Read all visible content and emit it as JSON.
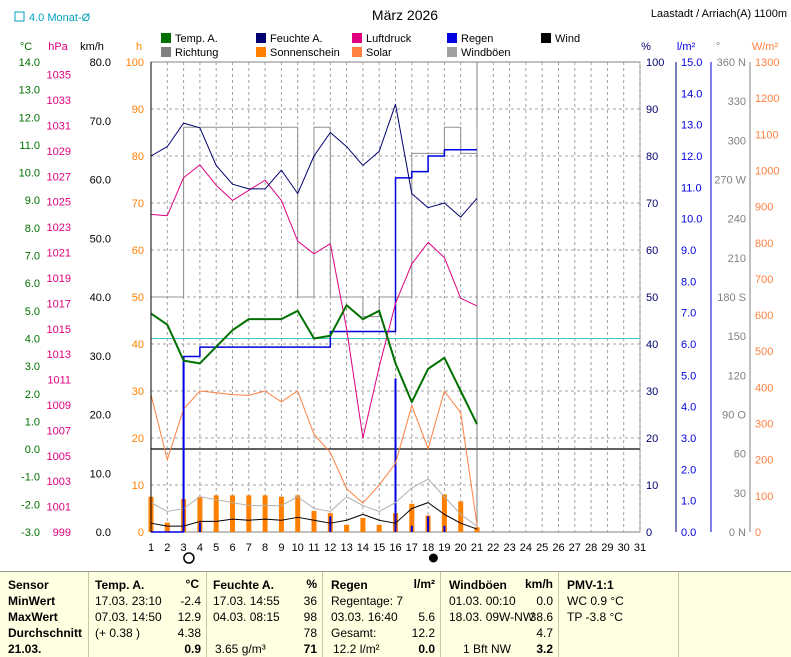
{
  "title": "März 2026",
  "station": "Laastadt / Arriach(A) 1100m",
  "avg_label": "4.0 Monat-Ø",
  "legend": [
    {
      "name": "Temp. A.",
      "color": "#007000"
    },
    {
      "name": "Feuchte A.",
      "color": "#000070"
    },
    {
      "name": "Luftdruck",
      "color": "#e0007f"
    },
    {
      "name": "Regen",
      "color": "#0000e0"
    },
    {
      "name": "Wind",
      "color": "#000000"
    },
    {
      "name": "Richtung",
      "color": "#808080"
    },
    {
      "name": "Sonnenschein",
      "color": "#ff8000"
    },
    {
      "name": "Solar",
      "color": "#ff8040"
    },
    {
      "name": "Windböen",
      "color": "#a0a0a0"
    }
  ],
  "units": {
    "temp": "°C",
    "press": "hPa",
    "wind": "km/h",
    "sun": "h",
    "hum": "%",
    "rain": "l/m²",
    "dir": "°",
    "solar": "W/m²"
  },
  "axes": {
    "temp_ticks": [
      "14.0",
      "13.0",
      "12.0",
      "11.0",
      "10.0",
      "9.0",
      "8.0",
      "7.0",
      "6.0",
      "5.0",
      "4.0",
      "3.0",
      "2.0",
      "1.0",
      "0.0",
      "-1.0",
      "-2.0",
      "-3.0"
    ],
    "press_ticks": [
      "1035",
      "1033",
      "1031",
      "1029",
      "1027",
      "1025",
      "1023",
      "1021",
      "1019",
      "1017",
      "1015",
      "1013",
      "1011",
      "1009",
      "1007",
      "1005",
      "1003",
      "1001",
      "999"
    ],
    "wind_ticks": [
      "80.0",
      "70.0",
      "60.0",
      "50.0",
      "40.0",
      "30.0",
      "20.0",
      "10.0",
      "0.0"
    ],
    "sun_ticks": [
      "100",
      "90",
      "80",
      "70",
      "60",
      "50",
      "40",
      "30",
      "20",
      "10",
      "0"
    ],
    "hum_ticks": [
      "100",
      "90",
      "80",
      "70",
      "60",
      "50",
      "40",
      "30",
      "20",
      "10",
      "0"
    ],
    "rain_ticks": [
      "15.0",
      "14.0",
      "13.0",
      "12.0",
      "11.0",
      "10.0",
      "9.0",
      "8.0",
      "7.0",
      "6.0",
      "5.0",
      "4.0",
      "3.0",
      "2.0",
      "1.0",
      "0.0"
    ],
    "dir_ticks": [
      "360 N",
      "330",
      "300",
      "270 W",
      "240",
      "210",
      "180 S",
      "150",
      "120",
      "90 O",
      "60",
      "30",
      "0 N"
    ],
    "solar_ticks": [
      "1300",
      "1200",
      "1100",
      "1000",
      "900",
      "800",
      "700",
      "600",
      "500",
      "400",
      "300",
      "200",
      "100",
      "0"
    ],
    "x_ticks": [
      "1",
      "2",
      "3",
      "4",
      "5",
      "6",
      "7",
      "8",
      "9",
      "10",
      "11",
      "12",
      "13",
      "14",
      "15",
      "16",
      "17",
      "18",
      "19",
      "20",
      "21",
      "22",
      "23",
      "24",
      "25",
      "26",
      "27",
      "28",
      "29",
      "30",
      "31"
    ]
  },
  "chart_data": {
    "type": "line",
    "title": "März 2026",
    "x": [
      1,
      2,
      3,
      4,
      5,
      6,
      7,
      8,
      9,
      10,
      11,
      12,
      13,
      14,
      15,
      16,
      17,
      18,
      19,
      20,
      21
    ],
    "xlim": [
      1,
      31
    ],
    "series": [
      {
        "name": "Temp. A.",
        "unit": "°C",
        "ylim": [
          -3,
          14
        ],
        "values": [
          4.9,
          4.5,
          3.2,
          3.1,
          3.7,
          4.3,
          4.7,
          4.7,
          4.7,
          5.0,
          4.0,
          4.1,
          5.2,
          4.7,
          5.0,
          3.1,
          1.7,
          2.9,
          3.3,
          2.1,
          0.9
        ]
      },
      {
        "name": "Feuchte A.",
        "unit": "%",
        "ylim": [
          0,
          100
        ],
        "values": [
          80,
          82,
          87,
          86,
          78,
          74,
          73,
          73,
          77,
          72,
          80,
          85,
          82,
          78,
          81,
          91,
          72,
          69,
          70,
          67,
          71
        ]
      },
      {
        "name": "Luftdruck",
        "unit": "hPa",
        "ylim": [
          999,
          1036
        ],
        "values": [
          1024.0,
          1023.9,
          1026.9,
          1027.9,
          1026.3,
          1025.1,
          1025.9,
          1026.7,
          1025.1,
          1021.9,
          1020.9,
          1021.7,
          1015.0,
          1006.4,
          1012.0,
          1017.0,
          1020.1,
          1021.8,
          1020.6,
          1017.4,
          1016.8
        ]
      },
      {
        "name": "Regen",
        "unit": "l/m²",
        "ylim": [
          0,
          15
        ],
        "cumulative": [
          0.0,
          0.0,
          5.6,
          5.9,
          5.9,
          5.9,
          5.9,
          5.9,
          5.9,
          5.9,
          5.9,
          6.4,
          6.4,
          6.4,
          6.4,
          11.3,
          11.5,
          12.0,
          12.2,
          12.2,
          12.2
        ],
        "daily": [
          0.0,
          0.0,
          5.6,
          0.3,
          0.0,
          0.0,
          0.0,
          0.0,
          0.0,
          0.0,
          0.0,
          0.5,
          0.0,
          0.0,
          0.0,
          4.9,
          0.2,
          0.5,
          0.2,
          0.0,
          0.0
        ]
      },
      {
        "name": "Wind",
        "unit": "km/h",
        "ylim": [
          0,
          80
        ],
        "values": [
          1.5,
          1.0,
          1.0,
          1.8,
          1.8,
          2.2,
          2.0,
          2.2,
          2.0,
          2.5,
          2.0,
          1.5,
          2.0,
          3.0,
          2.0,
          1.5,
          4.0,
          5.0,
          3.0,
          1.5,
          0.5
        ]
      },
      {
        "name": "Richtung",
        "unit": "°",
        "ylim": [
          0,
          360
        ],
        "values": [
          180,
          180,
          310,
          310,
          310,
          310,
          310,
          310,
          310,
          180,
          310,
          180,
          180,
          165,
          180,
          180,
          290,
          290,
          310,
          290,
          310
        ]
      },
      {
        "name": "Sonnenschein",
        "unit": "h",
        "ylim": [
          0,
          100
        ],
        "values": [
          7.5,
          2.0,
          7.0,
          7.5,
          7.8,
          7.8,
          7.8,
          7.8,
          7.5,
          7.8,
          4.5,
          4.0,
          1.5,
          3.0,
          1.5,
          4.0,
          6.0,
          3.5,
          8.0,
          6.5,
          1.0
        ]
      },
      {
        "name": "Solar",
        "unit": "W/m²",
        "ylim": [
          0,
          1300
        ],
        "values": [
          380,
          200,
          340,
          390,
          385,
          380,
          378,
          390,
          360,
          390,
          270,
          220,
          120,
          80,
          130,
          190,
          350,
          230,
          390,
          330,
          20
        ]
      },
      {
        "name": "Windböen",
        "unit": "km/h",
        "ylim": [
          0,
          80
        ],
        "values": [
          5.0,
          3.5,
          4.0,
          6.0,
          5.5,
          5.0,
          4.5,
          4.5,
          4.5,
          6.0,
          4.0,
          3.5,
          6.0,
          4.5,
          3.5,
          5.0,
          7.5,
          9.0,
          6.0,
          3.0,
          1.0
        ]
      }
    ],
    "reference_lines": [
      {
        "axis": "temp",
        "value": 4.0,
        "label": "4.0 Monat-Ø"
      },
      {
        "axis": "temp",
        "value": 0.0
      }
    ],
    "moon": [
      {
        "day": 4,
        "phase": "full"
      },
      {
        "day": 19,
        "phase": "new"
      }
    ],
    "grid": true,
    "legend_position": "top"
  },
  "stats": {
    "rows": [
      "Sensor",
      "MinWert",
      "MaxWert",
      "Durchschnitt",
      "21.03."
    ],
    "temp": {
      "header": "Temp. A.",
      "unit": "°C",
      "min_time": "17.03.  23:10",
      "min": "-2.4",
      "max_time": "07.03.  14:50",
      "max": "12.9",
      "avg_note": "(+ 0.38 )",
      "avg": "4.38",
      "current": "0.9"
    },
    "hum": {
      "header": "Feuchte A.",
      "unit": "%",
      "min_time": "17.03.  14:55",
      "min": "36",
      "max_time": "04.03.  08:15",
      "max": "98",
      "avg": "78",
      "abs": "3.65 g/m³",
      "current": "71"
    },
    "rain": {
      "header": "Regen",
      "unit": "l/m²",
      "days": "Regentage: 7",
      "max_time": "03.03.  16:40",
      "max": "5.6",
      "total_label": "Gesamt:",
      "total": "12.2",
      "today": "12.2 l/m²",
      "current": "0.0"
    },
    "gust": {
      "header": "Windböen",
      "unit": "km/h",
      "min_time": "01.03.  00:10",
      "min": "0.0",
      "max_time": "18.03.  09W-NW",
      "max": "38.6",
      "avg": "4.7",
      "current_label": "1 Bft NW",
      "current": "3.2"
    },
    "pmv": {
      "header": "PMV-1:1",
      "wc": "WC 0.9 °C",
      "tp": "TP -3.8 °C"
    }
  }
}
